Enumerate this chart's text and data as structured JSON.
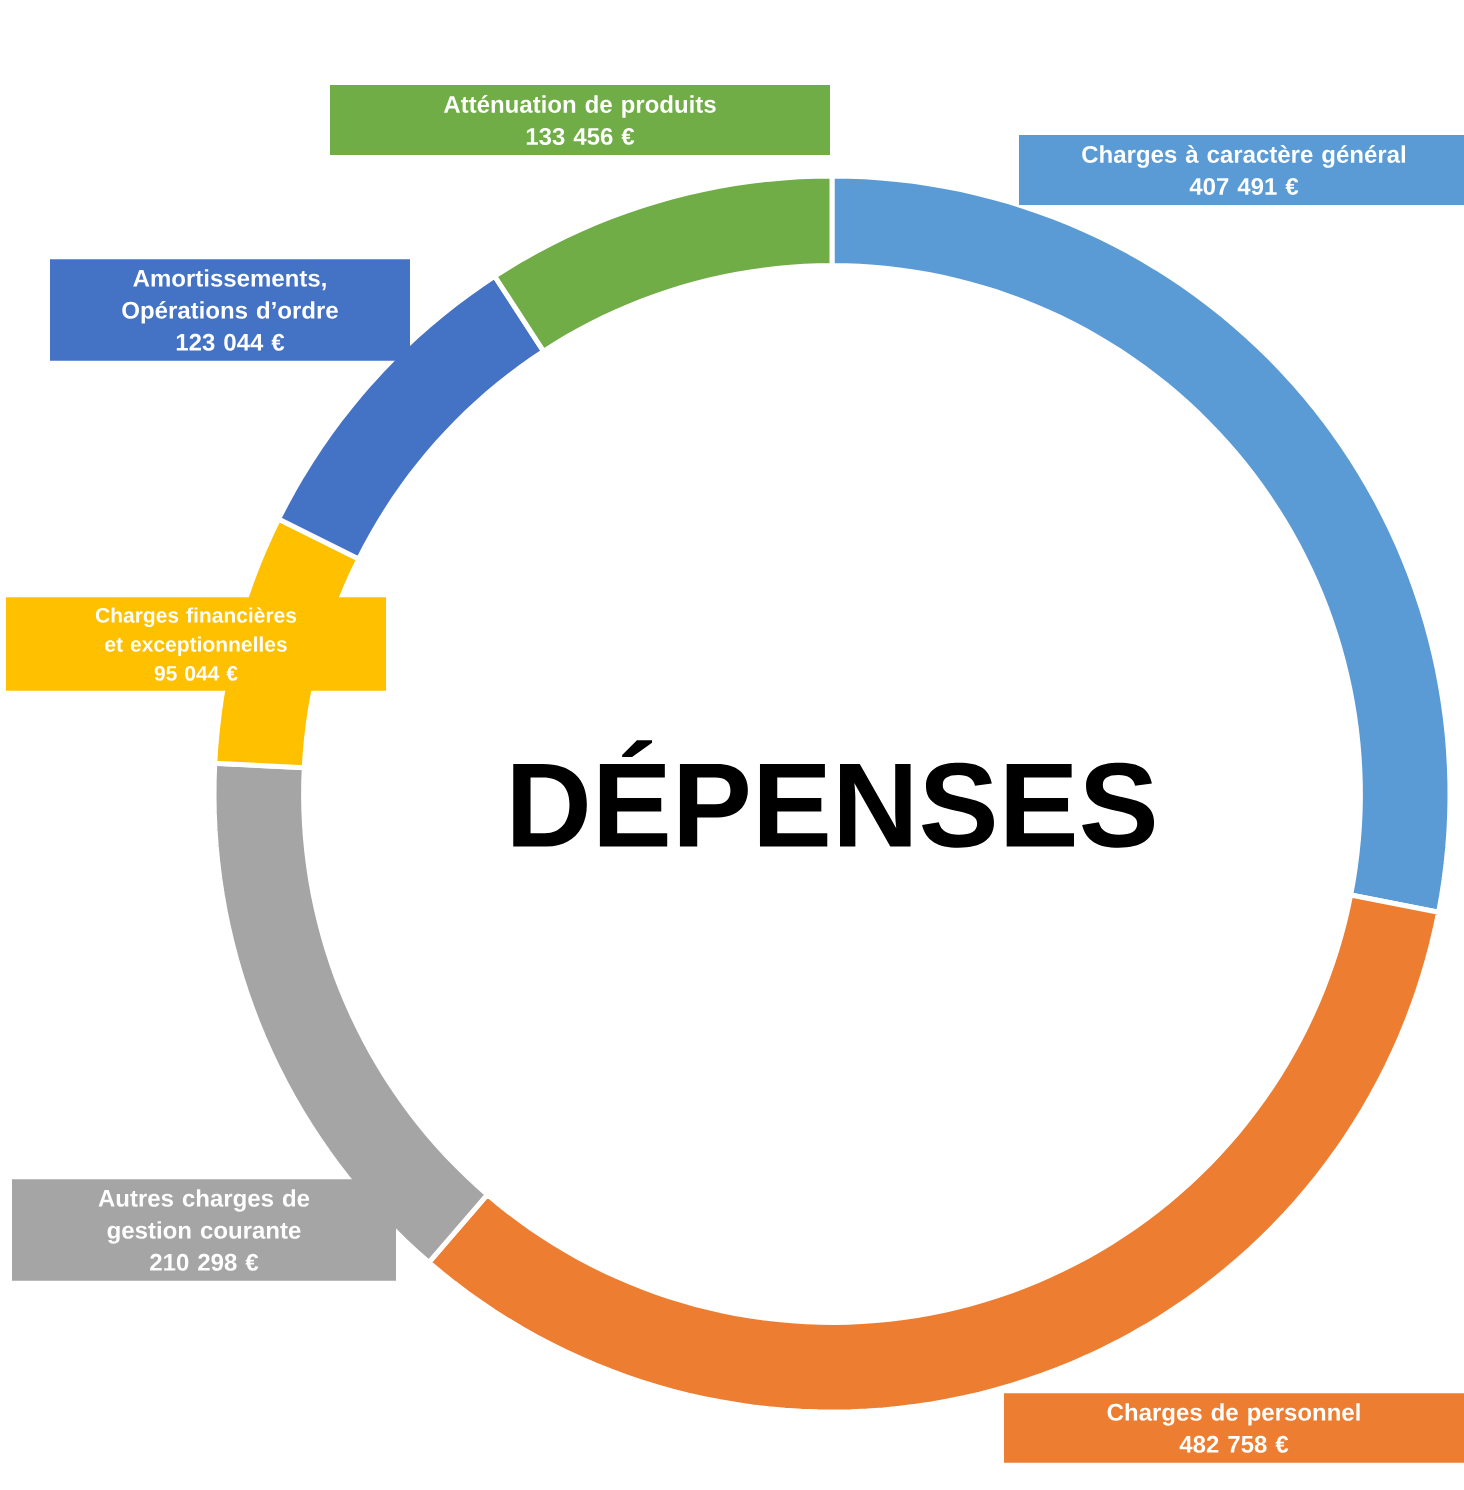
{
  "chart_data": {
    "type": "donut",
    "title": "DÉPENSES",
    "categories": [
      "Charges à caractère général",
      "Charges de personnel",
      "Autres charges de gestion courante",
      "Charges financières et exceptionnelles",
      "Amortissements, Opérations d’ordre",
      "Atténuation de produits"
    ],
    "values": [
      407491,
      482758,
      210298,
      95044,
      123044,
      133456
    ],
    "value_labels": [
      "407 491 €",
      "482 758 €",
      "210 298 €",
      "95 044 €",
      "123 044 €",
      "133 456 €"
    ],
    "colors": [
      "#5b9bd5",
      "#ed7d31",
      "#a5a5a5",
      "#ffc000",
      "#4472c4",
      "#70ad47"
    ]
  }
}
